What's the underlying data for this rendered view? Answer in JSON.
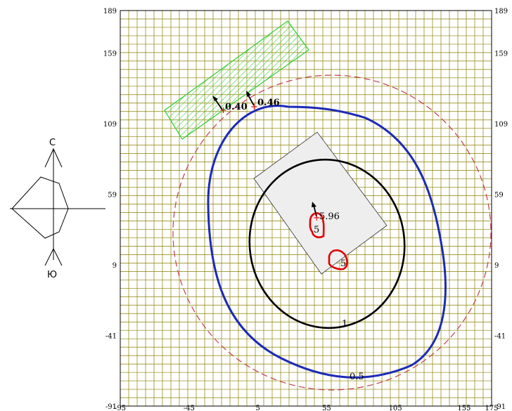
{
  "compass": {
    "north_label": "С",
    "south_label": "Ю"
  },
  "axes": {
    "x_ticks": [
      "-95",
      "-45",
      "5",
      "55",
      "105",
      "155",
      "175"
    ],
    "y_ticks": [
      "189",
      "159",
      "109",
      "59",
      "9",
      "-41",
      "-91"
    ],
    "right_ticks": [
      "189",
      "159",
      "109",
      "59",
      "9",
      "-41",
      "-91"
    ],
    "xlim": [
      -95,
      175
    ],
    "ylim": [
      -91,
      189
    ]
  },
  "contours": [
    {
      "name": "contour-0.05",
      "label": "",
      "color": "#c04050",
      "style": "dashed"
    },
    {
      "name": "contour-0.5",
      "label": "0.5",
      "color": "#1c2ab8",
      "style": "solid"
    },
    {
      "name": "contour-1",
      "label": "1",
      "color": "#000000",
      "style": "solid"
    },
    {
      "name": "contour-5",
      "label": "5",
      "color": "#e00000",
      "style": "solid"
    }
  ],
  "points": [
    {
      "label": "0.40",
      "x": -33,
      "y": 122
    },
    {
      "label": "0.46",
      "x": 3,
      "y": 126
    },
    {
      "label": "5.96",
      "x": 46,
      "y": 38
    }
  ],
  "zone_labels": [
    "5",
    "5"
  ],
  "colors": {
    "grid": "#8b8000",
    "zone_green": "#2ecc2e",
    "building_fill": "#eeeeee"
  }
}
